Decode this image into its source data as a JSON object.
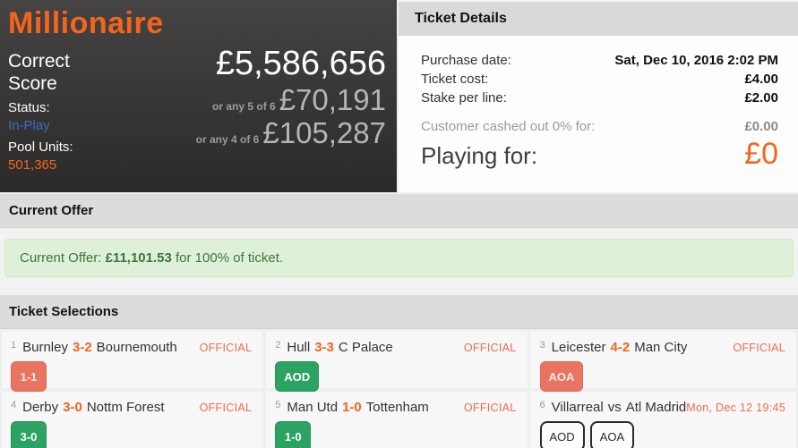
{
  "pool_panel": {
    "title": "Millionaire",
    "game_type": "Correct Score",
    "status_label": "Status:",
    "status_value": "In-Play",
    "pool_units_label": "Pool Units:",
    "pool_units_value": "501,365",
    "jackpot_value": "£5,586,656",
    "consolation_1_label": "or any 5 of 6",
    "consolation_1_value": "£70,191",
    "consolation_2_label": "or any 4 of 6",
    "consolation_2_value": "£105,287"
  },
  "ticket_details": {
    "title": "Ticket Details",
    "purchase_date_label": "Purchase date:",
    "purchase_date_value": "Sat, Dec 10, 2016 2:02 PM",
    "ticket_cost_label": "Ticket cost:",
    "ticket_cost_value": "£4.00",
    "stake_per_line_label": "Stake per line:",
    "stake_per_line_value": "£2.00",
    "cashed_out_label": "Customer cashed out 0% for:",
    "cashed_out_value": "£0.00",
    "playing_for_label": "Playing for:",
    "playing_for_value": "£0"
  },
  "current_offer": {
    "section_title": "Current Offer",
    "offer_prefix": "Current Offer: ",
    "offer_amount": "£11,101.53",
    "offer_suffix": " for 100% of ticket."
  },
  "ticket_selections": {
    "section_title": "Ticket Selections",
    "matches": [
      {
        "num": "1",
        "home": "Burnley",
        "score": "3-2",
        "away": "Bournemouth",
        "status": "OFFICIAL",
        "badges": [
          {
            "label": "1-1",
            "state": "lost"
          }
        ]
      },
      {
        "num": "2",
        "home": "Hull",
        "score": "3-3",
        "away": "C Palace",
        "status": "OFFICIAL",
        "badges": [
          {
            "label": "AOD",
            "state": "won"
          }
        ]
      },
      {
        "num": "3",
        "home": "Leicester",
        "score": "4-2",
        "away": "Man City",
        "status": "OFFICIAL",
        "badges": [
          {
            "label": "AOA",
            "state": "lost"
          }
        ]
      },
      {
        "num": "4",
        "home": "Derby",
        "score": "3-0",
        "away": "Nottm Forest",
        "status": "OFFICIAL",
        "badges": [
          {
            "label": "3-0",
            "state": "won"
          }
        ]
      },
      {
        "num": "5",
        "home": "Man Utd",
        "score": "1-0",
        "away": "Tottenham",
        "status": "OFFICIAL",
        "badges": [
          {
            "label": "1-0",
            "state": "won"
          }
        ]
      },
      {
        "num": "6",
        "home": "Villarreal",
        "score": "vs",
        "away": "Atl Madrid",
        "status": "Mon, Dec 12 19:45",
        "badges": [
          {
            "label": "AOD",
            "state": "open"
          },
          {
            "label": "AOA",
            "state": "open"
          }
        ]
      }
    ]
  },
  "colors": {
    "brand_orange": "#f4641c",
    "status_blue": "#3b6cc7",
    "official_orange": "#ed6c4f",
    "badge_won_green": "#2ca263",
    "badge_lost_red": "#e87461",
    "offer_text_green": "#3c763d",
    "offer_bg_green": "#dff0d8"
  }
}
